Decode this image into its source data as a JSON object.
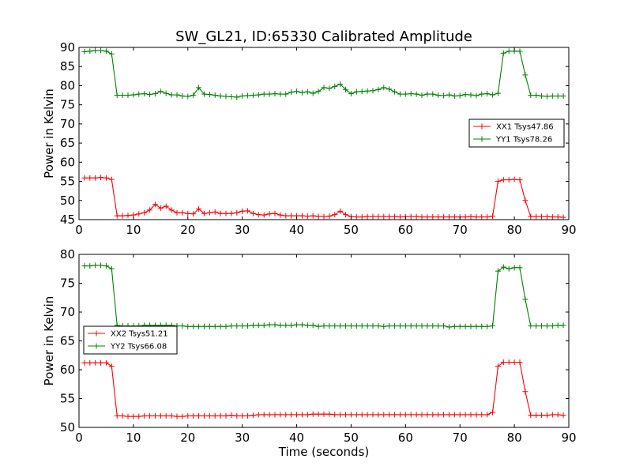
{
  "figure": {
    "title": "SW_GL21, ID:65330 Calibrated Amplitude",
    "xlabel": "Time (seconds)"
  },
  "colors": {
    "red": "#ff0000",
    "green": "#008000",
    "axes": "#000000"
  },
  "chart_data": [
    {
      "type": "line",
      "ylabel": "Power in Kelvin",
      "xlim": [
        0,
        90
      ],
      "ylim": [
        45,
        90
      ],
      "xticks": [
        0,
        10,
        20,
        30,
        40,
        50,
        60,
        70,
        80,
        90
      ],
      "yticks": [
        45,
        50,
        55,
        60,
        65,
        70,
        75,
        80,
        85,
        90
      ],
      "grid": false,
      "legend_placement": "center-right",
      "x": [
        1,
        2,
        3,
        4,
        5,
        6,
        7,
        8,
        9,
        10,
        11,
        12,
        13,
        14,
        15,
        16,
        17,
        18,
        19,
        20,
        21,
        22,
        23,
        24,
        25,
        26,
        27,
        28,
        29,
        30,
        31,
        32,
        33,
        34,
        35,
        36,
        37,
        38,
        39,
        40,
        41,
        42,
        43,
        44,
        45,
        46,
        47,
        48,
        49,
        50,
        51,
        52,
        53,
        54,
        55,
        56,
        57,
        58,
        59,
        60,
        61,
        62,
        63,
        64,
        65,
        66,
        67,
        68,
        69,
        70,
        71,
        72,
        73,
        74,
        75,
        76,
        77,
        78,
        79,
        80,
        81,
        82,
        83,
        84,
        85,
        86,
        87,
        88,
        89
      ],
      "series": [
        {
          "name": "XX1 Tsys47.86",
          "color": "#ff0000",
          "values": [
            55.9,
            55.9,
            55.9,
            56.0,
            55.9,
            55.5,
            46.0,
            46.0,
            46.1,
            46.2,
            46.5,
            46.8,
            47.5,
            49.0,
            48.0,
            48.5,
            47.5,
            46.8,
            46.8,
            46.6,
            46.5,
            47.8,
            46.6,
            46.8,
            47.0,
            46.6,
            46.6,
            46.6,
            46.8,
            47.2,
            47.3,
            46.6,
            46.3,
            46.2,
            46.5,
            46.6,
            46.2,
            46.0,
            46.0,
            46.0,
            46.0,
            45.9,
            46.0,
            45.8,
            45.8,
            45.9,
            46.3,
            47.2,
            46.3,
            45.8,
            45.7,
            45.7,
            45.8,
            45.8,
            45.8,
            45.8,
            45.8,
            45.8,
            45.7,
            45.8,
            45.8,
            45.8,
            45.7,
            45.7,
            45.7,
            45.7,
            45.7,
            45.7,
            45.7,
            45.7,
            45.7,
            45.8,
            45.7,
            45.7,
            45.7,
            45.9,
            55.0,
            55.4,
            55.4,
            55.5,
            55.4,
            50.0,
            45.8,
            45.8,
            45.8,
            45.8,
            45.7,
            45.7,
            45.6
          ]
        },
        {
          "name": "YY1 Tsys78.26",
          "color": "#008000",
          "values": [
            88.9,
            89.0,
            89.2,
            89.2,
            89.0,
            88.3,
            77.5,
            77.5,
            77.5,
            77.6,
            77.8,
            77.9,
            77.7,
            77.9,
            78.5,
            78.0,
            77.6,
            77.6,
            77.3,
            77.2,
            77.5,
            79.5,
            77.8,
            77.7,
            77.5,
            77.3,
            77.2,
            77.1,
            77.0,
            77.3,
            77.4,
            77.5,
            77.6,
            77.8,
            77.8,
            77.9,
            77.8,
            77.8,
            78.3,
            78.5,
            78.2,
            78.4,
            78.0,
            78.5,
            79.5,
            79.3,
            79.8,
            80.4,
            79.0,
            77.9,
            78.4,
            78.5,
            78.6,
            78.7,
            79.0,
            79.5,
            79.1,
            78.4,
            77.8,
            77.8,
            77.9,
            77.8,
            77.5,
            77.8,
            77.8,
            77.5,
            77.4,
            77.6,
            77.3,
            77.4,
            77.7,
            77.6,
            77.4,
            77.8,
            77.9,
            77.6,
            78.0,
            88.5,
            89.0,
            89.0,
            89.0,
            82.8,
            77.5,
            77.5,
            77.3,
            77.2,
            77.3,
            77.3,
            77.3
          ]
        }
      ]
    },
    {
      "type": "line",
      "ylabel": "Power in Kelvin",
      "xlim": [
        0,
        90
      ],
      "ylim": [
        50,
        80
      ],
      "xticks": [
        0,
        10,
        20,
        30,
        40,
        50,
        60,
        70,
        80,
        90
      ],
      "yticks": [
        50,
        55,
        60,
        65,
        70,
        75,
        80
      ],
      "grid": false,
      "legend_placement": "center-left",
      "x": [
        1,
        2,
        3,
        4,
        5,
        6,
        7,
        8,
        9,
        10,
        11,
        12,
        13,
        14,
        15,
        16,
        17,
        18,
        19,
        20,
        21,
        22,
        23,
        24,
        25,
        26,
        27,
        28,
        29,
        30,
        31,
        32,
        33,
        34,
        35,
        36,
        37,
        38,
        39,
        40,
        41,
        42,
        43,
        44,
        45,
        46,
        47,
        48,
        49,
        50,
        51,
        52,
        53,
        54,
        55,
        56,
        57,
        58,
        59,
        60,
        61,
        62,
        63,
        64,
        65,
        66,
        67,
        68,
        69,
        70,
        71,
        72,
        73,
        74,
        75,
        76,
        77,
        78,
        79,
        80,
        81,
        82,
        83,
        84,
        85,
        86,
        87,
        88,
        89
      ],
      "series": [
        {
          "name": "XX2 Tsys51.21",
          "color": "#ff0000",
          "values": [
            61.2,
            61.2,
            61.2,
            61.2,
            61.2,
            60.6,
            52.0,
            52.0,
            51.9,
            51.9,
            51.9,
            52.0,
            52.0,
            52.0,
            52.0,
            52.0,
            52.0,
            51.9,
            51.9,
            52.0,
            52.0,
            52.0,
            52.0,
            52.0,
            52.0,
            52.0,
            52.0,
            52.1,
            52.0,
            52.0,
            52.0,
            52.1,
            52.2,
            52.2,
            52.2,
            52.2,
            52.2,
            52.2,
            52.2,
            52.2,
            52.2,
            52.2,
            52.3,
            52.3,
            52.3,
            52.3,
            52.2,
            52.2,
            52.2,
            52.2,
            52.2,
            52.2,
            52.2,
            52.2,
            52.2,
            52.2,
            52.2,
            52.2,
            52.2,
            52.2,
            52.2,
            52.2,
            52.2,
            52.2,
            52.2,
            52.2,
            52.2,
            52.2,
            52.2,
            52.2,
            52.2,
            52.2,
            52.2,
            52.2,
            52.2,
            52.6,
            60.6,
            61.3,
            61.3,
            61.3,
            61.3,
            56.2,
            52.1,
            52.1,
            52.1,
            52.1,
            52.2,
            52.2,
            52.1
          ]
        },
        {
          "name": "YY2 Tsys66.08",
          "color": "#008000",
          "values": [
            78.0,
            78.0,
            78.1,
            78.1,
            78.0,
            77.5,
            67.7,
            67.6,
            67.6,
            67.6,
            67.6,
            67.7,
            67.7,
            67.7,
            67.7,
            67.7,
            67.7,
            67.6,
            67.6,
            67.5,
            67.5,
            67.5,
            67.5,
            67.5,
            67.5,
            67.5,
            67.5,
            67.6,
            67.6,
            67.6,
            67.6,
            67.7,
            67.7,
            67.7,
            67.8,
            67.8,
            67.7,
            67.7,
            67.7,
            67.8,
            67.8,
            67.7,
            67.7,
            67.5,
            67.6,
            67.6,
            67.6,
            67.6,
            67.6,
            67.6,
            67.6,
            67.6,
            67.6,
            67.6,
            67.6,
            67.5,
            67.6,
            67.6,
            67.6,
            67.6,
            67.6,
            67.6,
            67.6,
            67.6,
            67.6,
            67.6,
            67.6,
            67.4,
            67.5,
            67.5,
            67.5,
            67.5,
            67.5,
            67.5,
            67.5,
            67.6,
            77.1,
            77.8,
            77.5,
            77.7,
            77.7,
            72.2,
            67.6,
            67.6,
            67.6,
            67.6,
            67.6,
            67.7,
            67.7
          ]
        }
      ]
    }
  ]
}
